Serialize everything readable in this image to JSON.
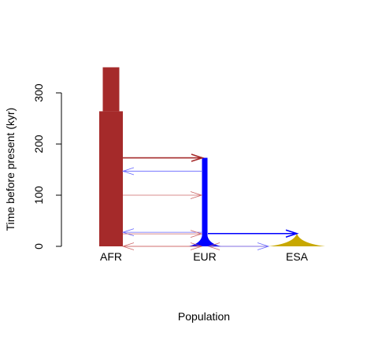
{
  "chart_data": {
    "type": "diagram",
    "xlabel": "Population",
    "ylabel": "Time before present (kyr)",
    "ylim": [
      0,
      350
    ],
    "yticks": [
      0,
      100,
      200,
      300
    ],
    "populations": [
      {
        "name": "AFR",
        "color": "#a52a2a"
      },
      {
        "name": "EUR",
        "color": "#0000ff"
      },
      {
        "name": "ESA",
        "color": "#c8a800"
      }
    ],
    "afr_size_epochs": [
      {
        "from_kyr": 0,
        "to_kyr": 264,
        "relative_width": 1.0
      },
      {
        "from_kyr": 264,
        "to_kyr": 350,
        "relative_width": 0.7
      }
    ],
    "split_events": [
      {
        "from": "AFR",
        "to": "EUR",
        "time_kyr": 173,
        "color": "#a52a2a"
      },
      {
        "from": "EUR",
        "to": "ESA",
        "time_kyr": 25,
        "color": "#0000ff"
      }
    ],
    "migration_arrows": [
      {
        "from": "EUR",
        "to": "AFR",
        "time_kyr": 147,
        "color": "#6666ff"
      },
      {
        "from": "AFR",
        "to": "EUR",
        "time_kyr": 100,
        "color": "#cc6666"
      },
      {
        "from": "EUR",
        "to": "AFR",
        "time_kyr": 26,
        "color": "#6666ff"
      },
      {
        "from": "AFR",
        "to": "EUR",
        "time_kyr": 26,
        "color": "#cc6666"
      },
      {
        "from": "EUR",
        "to": "AFR",
        "time_kyr": 0,
        "color": "#cc6666"
      },
      {
        "from": "AFR",
        "to": "EUR",
        "time_kyr": 0,
        "color": "#cc6666"
      },
      {
        "from": "ESA",
        "to": "EUR",
        "time_kyr": 0,
        "color": "#cc6666"
      },
      {
        "from": "EUR",
        "to": "ESA",
        "time_kyr": 0,
        "color": "#6666ff"
      }
    ]
  }
}
